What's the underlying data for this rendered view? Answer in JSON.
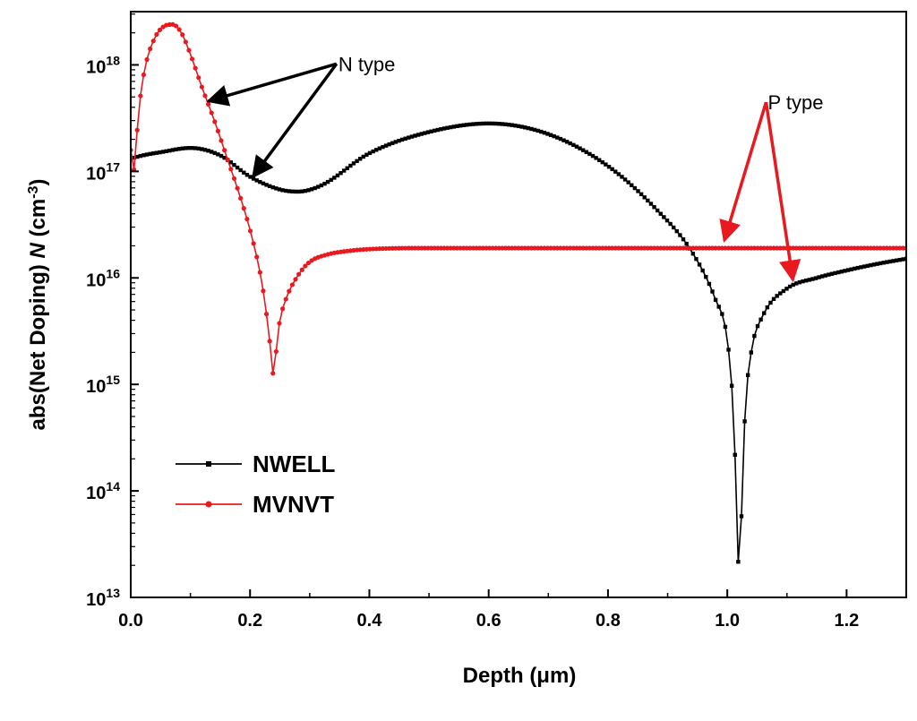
{
  "chart_data": {
    "type": "line",
    "title": "",
    "xlabel": "Depth (μm)",
    "ylabel": {
      "prefix": "abs(Net Doping) ",
      "var": "N",
      "unit_open": " (cm",
      "unit_exp": "-3",
      "unit_close": ")"
    },
    "xlim": [
      0,
      1.3
    ],
    "ylim_log10": [
      13,
      18.5
    ],
    "x_ticks": [
      {
        "value": 0.0,
        "label": "0.0"
      },
      {
        "value": 0.2,
        "label": "0.2"
      },
      {
        "value": 0.4,
        "label": "0.4"
      },
      {
        "value": 0.6,
        "label": "0.6"
      },
      {
        "value": 0.8,
        "label": "0.8"
      },
      {
        "value": 1.0,
        "label": "1.0"
      },
      {
        "value": 1.2,
        "label": "1.2"
      }
    ],
    "y_ticks": [
      {
        "exp": 13,
        "base": "10",
        "sup": "13"
      },
      {
        "exp": 14,
        "base": "10",
        "sup": "14"
      },
      {
        "exp": 15,
        "base": "10",
        "sup": "15"
      },
      {
        "exp": 16,
        "base": "10",
        "sup": "16"
      },
      {
        "exp": 17,
        "base": "10",
        "sup": "17"
      },
      {
        "exp": 18,
        "base": "10",
        "sup": "18"
      }
    ],
    "legend_position": "lower-left",
    "series": [
      {
        "name": "NWELL",
        "color": "#000000",
        "x": [
          0.0,
          0.02,
          0.05,
          0.1,
          0.15,
          0.2,
          0.25,
          0.28,
          0.32,
          0.4,
          0.5,
          0.6,
          0.7,
          0.8,
          0.88,
          0.94,
          0.98,
          1.0,
          1.01,
          1.015,
          1.02,
          1.025,
          1.03,
          1.04,
          1.06,
          1.1,
          1.15,
          1.2,
          1.25,
          1.3
        ],
        "log10_y": [
          17.12,
          17.15,
          17.18,
          17.22,
          17.15,
          16.95,
          16.83,
          16.81,
          16.87,
          17.17,
          17.37,
          17.45,
          17.35,
          17.05,
          16.65,
          16.25,
          15.8,
          15.42,
          14.75,
          14.0,
          13.18,
          14.0,
          14.75,
          15.3,
          15.65,
          15.9,
          16.0,
          16.07,
          16.13,
          16.18
        ]
      },
      {
        "name": "MVNVT",
        "color": "#e8191f",
        "x": [
          0.0,
          0.003,
          0.008,
          0.015,
          0.025,
          0.04,
          0.055,
          0.07,
          0.085,
          0.1,
          0.12,
          0.14,
          0.16,
          0.18,
          0.2,
          0.22,
          0.23,
          0.235,
          0.24,
          0.245,
          0.25,
          0.26,
          0.28,
          0.3,
          0.33,
          0.36,
          0.4,
          0.5,
          0.6,
          0.8,
          1.0,
          1.2,
          1.3
        ],
        "log10_y": [
          17.2,
          16.92,
          17.2,
          17.65,
          18.0,
          18.25,
          18.36,
          18.38,
          18.3,
          18.1,
          17.78,
          17.48,
          17.15,
          16.82,
          16.45,
          15.95,
          15.55,
          15.3,
          15.06,
          15.4,
          15.6,
          15.8,
          16.02,
          16.15,
          16.22,
          16.25,
          16.27,
          16.28,
          16.28,
          16.28,
          16.28,
          16.28,
          16.28
        ]
      }
    ],
    "annotations": [
      {
        "text": "N type",
        "color": "#000000",
        "anchor": [
          0.345,
          18.01
        ],
        "targets": [
          [
            0.13,
            17.66
          ],
          [
            0.205,
            16.95
          ]
        ]
      },
      {
        "text": "P type",
        "color": "#e8191f",
        "anchor": [
          1.065,
          17.65
        ],
        "targets": [
          [
            0.995,
            16.35
          ],
          [
            1.11,
            15.98
          ]
        ]
      }
    ]
  }
}
